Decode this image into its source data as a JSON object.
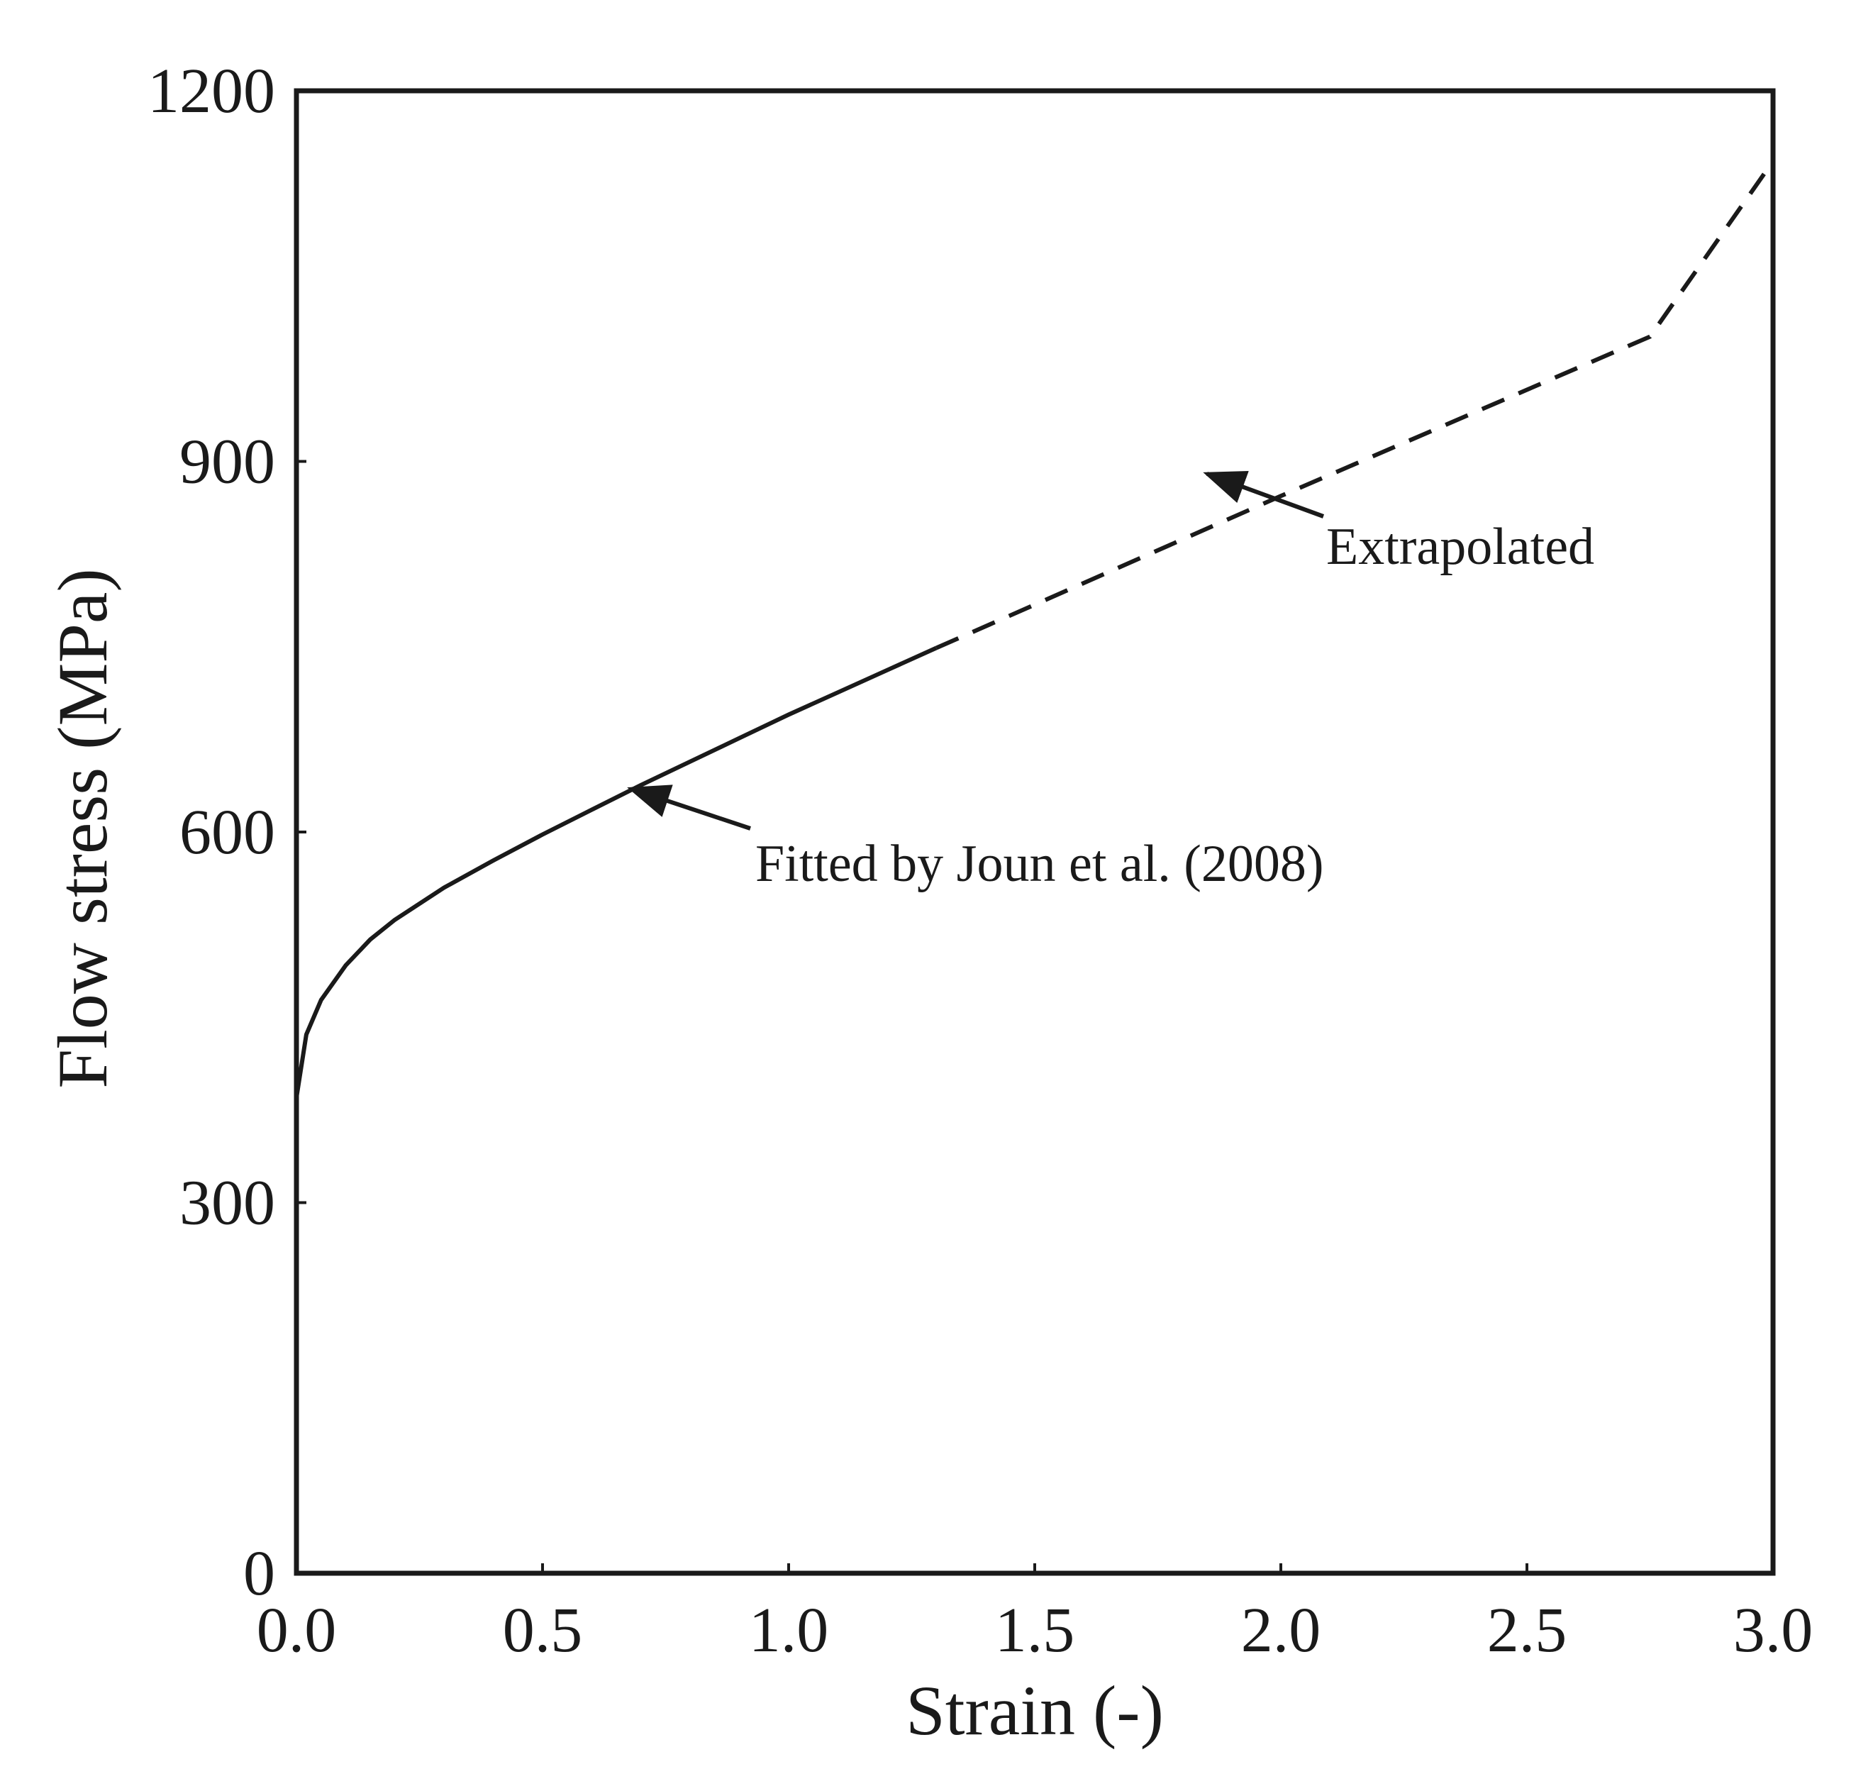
{
  "chart_data": {
    "type": "line",
    "title": "",
    "xlabel": "Strain (-)",
    "ylabel": "Flow stress (MPa)",
    "xlim": [
      0,
      3
    ],
    "ylim": [
      0,
      1200
    ],
    "x_ticks": [
      0,
      0.5,
      1,
      1.5,
      2,
      2.5,
      3
    ],
    "x_tick_labels": [
      "0.0",
      "0.5",
      "1.0",
      "1.5",
      "2.0",
      "2.5",
      "3.0"
    ],
    "y_ticks": [
      0,
      300,
      600,
      900,
      1200
    ],
    "y_tick_labels": [
      "0",
      "300",
      "600",
      "900",
      "1200"
    ],
    "grid": false,
    "series": [
      {
        "name": "Fitted by Joun et al. (2008)",
        "style": "solid",
        "x": [
          0,
          0.02,
          0.05,
          0.1,
          0.15,
          0.2,
          0.3,
          0.4,
          0.5,
          0.6,
          0.7,
          0.8,
          0.9,
          1.0,
          1.1,
          1.2,
          1.3
        ],
        "y": [
          385,
          436,
          464,
          492,
          513,
          529,
          555,
          577,
          598,
          618,
          638,
          657,
          676,
          695,
          713,
          731,
          749
        ]
      },
      {
        "name": "Extrapolated",
        "style": "dashed",
        "x": [
          1.3,
          1.5,
          1.75,
          2.0,
          2.25,
          2.5,
          2.75,
          3.0
        ],
        "y": [
          749,
          784,
          828,
          872,
          915,
          958,
          1001,
          1143
        ]
      }
    ],
    "annotations": [
      {
        "text": "Fitted by Joun et al. (2008)",
        "arrow_to": [
          0.68,
          635
        ]
      },
      {
        "text": "Extrapolated",
        "arrow_to": [
          1.85,
          890
        ]
      }
    ]
  }
}
